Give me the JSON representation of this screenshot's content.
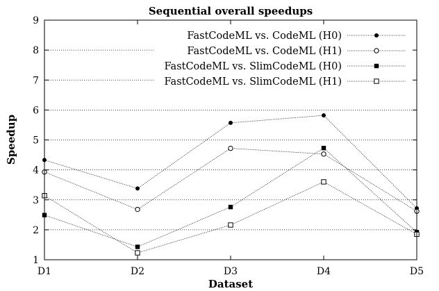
{
  "chart_data": {
    "type": "line",
    "title": "Sequential overall speedups",
    "xlabel": "Dataset",
    "ylabel": "Speedup",
    "categories": [
      "D1",
      "D2",
      "D3",
      "D4",
      "D5"
    ],
    "ylim": [
      1,
      9
    ],
    "yticks": [
      1,
      2,
      3,
      4,
      5,
      6,
      7,
      8,
      9
    ],
    "grid": "horizontal dotted",
    "legend_position": "top-right",
    "series": [
      {
        "name": "FastCodeML vs. CodeML (H0)",
        "marker": "filled-circle",
        "values": [
          4.33,
          3.38,
          5.57,
          5.82,
          2.72
        ]
      },
      {
        "name": "FastCodeML vs. CodeML (H1)",
        "marker": "open-circle",
        "values": [
          3.93,
          2.68,
          4.72,
          4.53,
          2.62
        ]
      },
      {
        "name": "FastCodeML vs. SlimCodeML (H0)",
        "marker": "filled-square",
        "values": [
          2.49,
          1.43,
          2.76,
          4.73,
          1.92
        ]
      },
      {
        "name": "FastCodeML vs. SlimCodeML (H1)",
        "marker": "open-square",
        "values": [
          3.14,
          1.23,
          2.16,
          3.6,
          1.85
        ]
      }
    ]
  }
}
